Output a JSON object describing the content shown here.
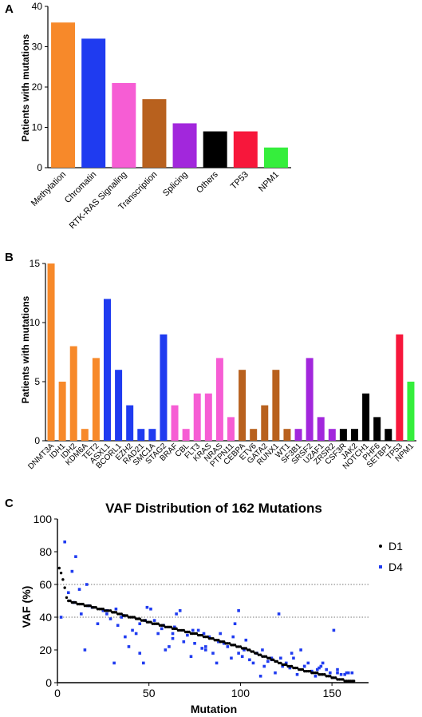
{
  "figure": {
    "panels": [
      {
        "letter": "A"
      },
      {
        "letter": "B"
      },
      {
        "letter": "C"
      }
    ]
  },
  "chart_data": [
    {
      "type": "bar",
      "panel": "A",
      "xlabel": "",
      "ylabel": "Patients with mutations",
      "ylim": [
        0,
        40
      ],
      "yticks": [
        0,
        10,
        20,
        30,
        40
      ],
      "grid": false,
      "categories": [
        "Methylation",
        "Chromatin",
        "RTK-RAS Signaling",
        "Transcription",
        "Splicing",
        "Others",
        "TP53",
        "NPM1"
      ],
      "values": [
        36,
        32,
        21,
        17,
        11,
        9,
        9,
        5
      ],
      "colors": [
        "#F7892A",
        "#1F3BF0",
        "#F65DD4",
        "#B8611E",
        "#A227DC",
        "#000000",
        "#F7173B",
        "#35EE3C"
      ]
    },
    {
      "type": "bar",
      "panel": "B",
      "xlabel": "",
      "ylabel": "Patients with mutations",
      "ylim": [
        0,
        15
      ],
      "yticks": [
        0,
        5,
        10,
        15
      ],
      "grid": false,
      "categories": [
        "DNMT3A",
        "IDH1",
        "IDH2",
        "KDM6A",
        "TET2",
        "ASXL1",
        "BCORL1",
        "EZH2",
        "RAD21",
        "SMC1A",
        "STAG2",
        "BRAF",
        "CBL",
        "FLT3",
        "KRAS",
        "NRAS",
        "PTPN11",
        "CEBPA",
        "ETV6",
        "GATA2",
        "RUNX1",
        "WT1",
        "SF3B1",
        "SRSF2",
        "U2AF1",
        "ZRSR2",
        "CSF3R",
        "JAK2",
        "NOTCH1",
        "PHF6",
        "SETBP1",
        "TP53",
        "NPM1"
      ],
      "values": [
        15,
        5,
        8,
        1,
        7,
        12,
        6,
        3,
        1,
        1,
        9,
        3,
        1,
        4,
        4,
        7,
        2,
        6,
        1,
        3,
        6,
        1,
        1,
        7,
        2,
        1,
        1,
        1,
        4,
        2,
        1,
        9,
        5
      ],
      "group_colors": [
        "#F7892A",
        "#F7892A",
        "#F7892A",
        "#F7892A",
        "#F7892A",
        "#1F3BF0",
        "#1F3BF0",
        "#1F3BF0",
        "#1F3BF0",
        "#1F3BF0",
        "#1F3BF0",
        "#F65DD4",
        "#F65DD4",
        "#F65DD4",
        "#F65DD4",
        "#F65DD4",
        "#F65DD4",
        "#B8611E",
        "#B8611E",
        "#B8611E",
        "#B8611E",
        "#B8611E",
        "#A227DC",
        "#A227DC",
        "#A227DC",
        "#A227DC",
        "#000000",
        "#000000",
        "#000000",
        "#000000",
        "#000000",
        "#F7173B",
        "#35EE3C"
      ]
    },
    {
      "type": "scatter",
      "panel": "C",
      "title": "VAF Distribution of 162 Mutations",
      "xlabel": "Mutation",
      "ylabel": "VAF (%)",
      "xlim": [
        0,
        170
      ],
      "ylim": [
        0,
        100
      ],
      "xticks": [
        0,
        50,
        100,
        150
      ],
      "yticks": [
        0,
        20,
        40,
        60,
        80,
        100
      ],
      "reference_lines": [
        40,
        60
      ],
      "legend_position": "top-right",
      "series": [
        {
          "name": "D1",
          "color": "#000000",
          "marker": "circle",
          "x": [
            1,
            2,
            3,
            4,
            5,
            6,
            7,
            8,
            9,
            10,
            11,
            12,
            13,
            14,
            15,
            16,
            17,
            18,
            19,
            20,
            21,
            22,
            23,
            24,
            25,
            26,
            27,
            28,
            29,
            30,
            31,
            32,
            33,
            34,
            35,
            36,
            37,
            38,
            39,
            40,
            41,
            42,
            43,
            44,
            45,
            46,
            47,
            48,
            49,
            50,
            51,
            52,
            53,
            54,
            55,
            56,
            57,
            58,
            59,
            60,
            61,
            62,
            63,
            64,
            65,
            66,
            67,
            68,
            69,
            70,
            71,
            72,
            73,
            74,
            75,
            76,
            77,
            78,
            79,
            80,
            81,
            82,
            83,
            84,
            85,
            86,
            87,
            88,
            89,
            90,
            91,
            92,
            93,
            94,
            95,
            96,
            97,
            98,
            99,
            100,
            101,
            102,
            103,
            104,
            105,
            106,
            107,
            108,
            109,
            110,
            111,
            112,
            113,
            114,
            115,
            116,
            117,
            118,
            119,
            120,
            121,
            122,
            123,
            124,
            125,
            126,
            127,
            128,
            129,
            130,
            131,
            132,
            133,
            134,
            135,
            136,
            137,
            138,
            139,
            140,
            141,
            142,
            143,
            144,
            145,
            146,
            147,
            148,
            149,
            150,
            151,
            152,
            153,
            154,
            155,
            156,
            157,
            158,
            159,
            160,
            161,
            162
          ],
          "y": [
            70,
            67,
            63,
            58,
            52,
            50,
            50,
            49,
            49,
            49,
            48,
            48,
            48,
            48,
            47,
            47,
            47,
            47,
            46,
            46,
            46,
            45,
            45,
            45,
            45,
            44,
            44,
            44,
            44,
            43,
            43,
            43,
            42,
            42,
            42,
            41,
            41,
            41,
            40,
            40,
            40,
            40,
            39,
            39,
            39,
            38,
            38,
            38,
            37,
            37,
            37,
            36,
            36,
            36,
            36,
            35,
            35,
            35,
            34,
            34,
            34,
            34,
            33,
            33,
            33,
            32,
            32,
            32,
            32,
            31,
            31,
            31,
            30,
            30,
            30,
            30,
            29,
            29,
            29,
            28,
            28,
            28,
            27,
            27,
            27,
            26,
            26,
            26,
            25,
            25,
            25,
            24,
            24,
            24,
            23,
            23,
            23,
            22,
            22,
            22,
            21,
            21,
            21,
            20,
            20,
            19,
            19,
            18,
            18,
            17,
            17,
            16,
            16,
            16,
            15,
            15,
            14,
            14,
            13,
            13,
            12,
            12,
            11,
            11,
            11,
            10,
            10,
            10,
            9,
            9,
            9,
            8,
            8,
            8,
            7,
            7,
            7,
            7,
            6,
            6,
            6,
            6,
            5,
            5,
            5,
            5,
            4,
            4,
            4,
            3,
            3,
            3,
            2,
            2,
            2,
            2,
            1,
            1,
            1,
            1,
            1,
            1
          ]
        },
        {
          "name": "D4",
          "color": "#1F3BF0",
          "marker": "square",
          "x": [
            2,
            4,
            6,
            8,
            10,
            13,
            15,
            17,
            19,
            22,
            25,
            27,
            29,
            31,
            33,
            35,
            37,
            39,
            41,
            43,
            45,
            47,
            49,
            51,
            53,
            55,
            57,
            59,
            61,
            63,
            65,
            67,
            69,
            71,
            73,
            75,
            77,
            79,
            81,
            83,
            85,
            87,
            89,
            91,
            93,
            95,
            97,
            99,
            101,
            103,
            105,
            107,
            109,
            111,
            113,
            115,
            117,
            119,
            121,
            123,
            125,
            127,
            129,
            131,
            133,
            135,
            137,
            139,
            141,
            143,
            145,
            147,
            149,
            151,
            153,
            155,
            157,
            159,
            161,
            16,
            32,
            48,
            64,
            80,
            96,
            112,
            128,
            144,
            9,
            27,
            45,
            63,
            81,
            99,
            117,
            135,
            153,
            12,
            36,
            58,
            74,
            88,
            102,
            122,
            142,
            158
          ],
          "y": [
            40,
            86,
            55,
            68,
            77,
            42,
            20,
            47,
            46,
            36,
            44,
            42,
            39,
            12,
            35,
            40,
            28,
            22,
            32,
            30,
            18,
            12,
            46,
            45,
            38,
            30,
            33,
            20,
            22,
            27,
            42,
            44,
            25,
            29,
            16,
            24,
            32,
            21,
            20,
            28,
            18,
            12,
            30,
            24,
            22,
            15,
            36,
            44,
            16,
            26,
            14,
            12,
            18,
            4,
            10,
            13,
            15,
            6,
            42,
            10,
            12,
            9,
            15,
            5,
            20,
            10,
            12,
            7,
            4,
            9,
            12,
            8,
            6,
            32,
            6,
            5,
            5,
            6,
            6,
            60,
            45,
            38,
            34,
            30,
            28,
            20,
            18,
            10,
            49,
            44,
            36,
            30,
            22,
            18,
            14,
            10,
            8,
            57,
            41,
            35,
            32,
            25,
            20,
            15,
            8,
            6
          ]
        }
      ]
    }
  ]
}
